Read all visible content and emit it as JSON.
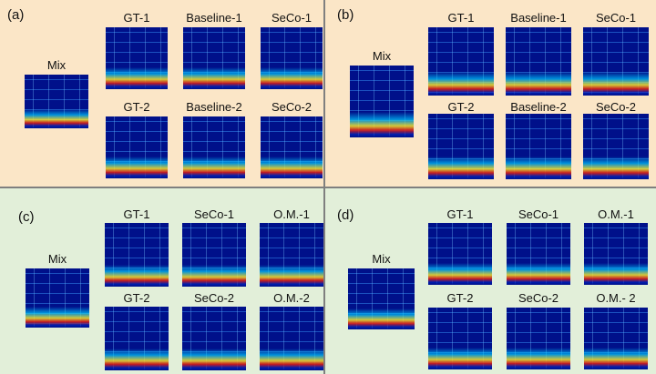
{
  "panels": [
    {
      "label": "(a)",
      "mix": "Mix",
      "rows": [
        [
          "GT-1",
          "Baseline-1",
          "SeCo-1"
        ],
        [
          "GT-2",
          "Baseline-2",
          "SeCo-2"
        ]
      ]
    },
    {
      "label": "(b)",
      "mix": "Mix",
      "rows": [
        [
          "GT-1",
          "Baseline-1",
          "SeCo-1"
        ],
        [
          "GT-2",
          "Baseline-2",
          "SeCo-2"
        ]
      ]
    },
    {
      "label": "(c)",
      "mix": "Mix",
      "rows": [
        [
          "GT-1",
          "SeCo-1",
          "O.M.-1"
        ],
        [
          "GT-2",
          "SeCo-2",
          "O.M.-2"
        ]
      ]
    },
    {
      "label": "(d)",
      "mix": "Mix",
      "rows": [
        [
          "GT-1",
          "SeCo-1",
          "O.M.-1"
        ],
        [
          "GT-2",
          "SeCo-2",
          "O.M.- 2"
        ]
      ]
    }
  ]
}
